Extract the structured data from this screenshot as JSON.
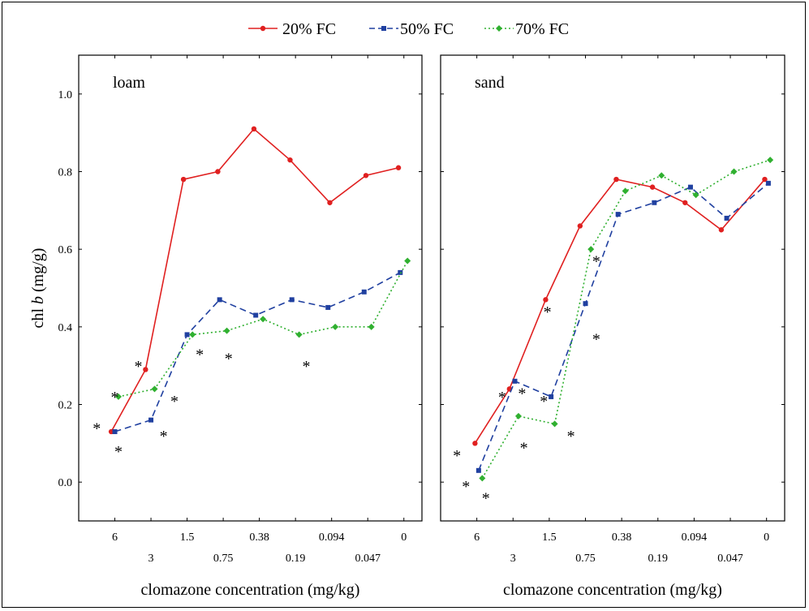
{
  "chart_data": {
    "type": "line",
    "ylabel_prefix": "chl ",
    "ylabel_italic": "b",
    "ylabel_suffix": " (mg/g)",
    "xlabel": "clomazone concentration (mg/kg)",
    "ylim": [
      -0.1,
      1.1
    ],
    "yticks": [
      0.0,
      0.2,
      0.4,
      0.6,
      0.8,
      1.0
    ],
    "ytick_labels": [
      "0.0",
      "0.2",
      "0.4",
      "0.6",
      "0.8",
      "1.0"
    ],
    "categories": [
      "6",
      "4.5",
      "3",
      "2.25",
      "1.5",
      "1.125",
      "0.75",
      "0.565",
      "0.38",
      "0.285",
      "0.19",
      "0.142",
      "0.094",
      "0.07",
      "0.047",
      "0.0235",
      "0"
    ],
    "xtick_labels_top": [
      "6",
      "1.5",
      "0.38",
      "0.094",
      "0"
    ],
    "xtick_labels_bottom": [
      "3",
      "0.75",
      "0.19",
      "0.047"
    ],
    "legend": [
      {
        "name": "20% FC",
        "color": "#e02020",
        "marker": "circle",
        "dash": "solid"
      },
      {
        "name": "50% FC",
        "color": "#2040a0",
        "marker": "square",
        "dash": "dashed"
      },
      {
        "name": "70% FC",
        "color": "#30b030",
        "marker": "diamond",
        "dash": "dotted"
      }
    ],
    "legend_position": "top-center",
    "asterisk": "*",
    "panels": [
      {
        "title": "loam",
        "series": [
          {
            "name": "20% FC",
            "x": [
              -0.1,
              0.85,
              1.9,
              2.85,
              3.85,
              4.85,
              5.95,
              6.95,
              7.85
            ],
            "values": [
              0.13,
              0.29,
              0.78,
              0.8,
              0.91,
              0.83,
              0.72,
              0.79,
              0.81
            ]
          },
          {
            "name": "50% FC",
            "x": [
              0,
              1.0,
              2.0,
              2.9,
              3.9,
              4.9,
              5.9,
              6.9,
              7.9
            ],
            "values": [
              0.13,
              0.16,
              0.38,
              0.47,
              0.43,
              0.47,
              0.45,
              0.49,
              0.54
            ]
          },
          {
            "name": "70% FC",
            "x": [
              0.1,
              1.1,
              2.15,
              3.1,
              4.1,
              5.1,
              6.1,
              7.1,
              8.1
            ],
            "values": [
              0.22,
              0.24,
              0.38,
              0.39,
              0.42,
              0.38,
              0.4,
              0.4,
              0.57
            ]
          }
        ],
        "asterisks": [
          {
            "x": -0.5,
            "y": 0.15
          },
          {
            "x": 0.0,
            "y": 0.23
          },
          {
            "x": 0.1,
            "y": 0.09
          },
          {
            "x": 0.65,
            "y": 0.31
          },
          {
            "x": 1.35,
            "y": 0.13
          },
          {
            "x": 1.65,
            "y": 0.22
          },
          {
            "x": 2.35,
            "y": 0.34
          },
          {
            "x": 3.15,
            "y": 0.33
          },
          {
            "x": 5.3,
            "y": 0.31
          }
        ]
      },
      {
        "title": "sand",
        "series": [
          {
            "name": "20% FC",
            "x": [
              -0.05,
              0.9,
              1.9,
              2.85,
              3.85,
              4.85,
              5.75,
              6.75,
              7.95
            ],
            "values": [
              0.1,
              0.24,
              0.47,
              0.66,
              0.78,
              0.76,
              0.72,
              0.65,
              0.78
            ]
          },
          {
            "name": "50% FC",
            "x": [
              0.05,
              1.05,
              2.05,
              3.0,
              3.9,
              4.9,
              5.9,
              6.9,
              8.05
            ],
            "values": [
              0.03,
              0.26,
              0.22,
              0.46,
              0.69,
              0.72,
              0.76,
              0.68,
              0.77
            ]
          },
          {
            "name": "70% FC",
            "x": [
              0.15,
              1.15,
              2.15,
              3.15,
              4.1,
              5.1,
              6.05,
              7.1,
              8.1
            ],
            "values": [
              0.01,
              0.17,
              0.15,
              0.6,
              0.75,
              0.79,
              0.74,
              0.8,
              0.83
            ]
          }
        ],
        "asterisks": [
          {
            "x": -0.55,
            "y": 0.08
          },
          {
            "x": -0.3,
            "y": 0.0
          },
          {
            "x": 0.25,
            "y": -0.03
          },
          {
            "x": 0.7,
            "y": 0.23
          },
          {
            "x": 1.25,
            "y": 0.24
          },
          {
            "x": 1.3,
            "y": 0.1
          },
          {
            "x": 1.85,
            "y": 0.22
          },
          {
            "x": 1.95,
            "y": 0.45
          },
          {
            "x": 2.6,
            "y": 0.13
          },
          {
            "x": 3.3,
            "y": 0.38
          },
          {
            "x": 3.3,
            "y": 0.58
          }
        ]
      }
    ]
  }
}
